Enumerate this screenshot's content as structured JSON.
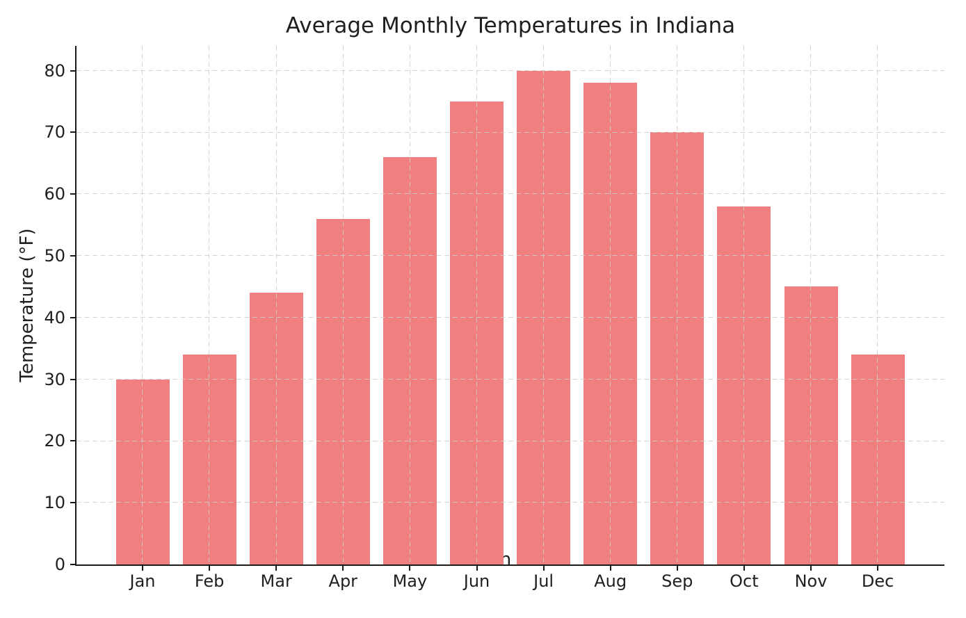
{
  "figure": {
    "background": "#ffffff"
  },
  "chart_data": {
    "type": "bar",
    "title": "Average Monthly Temperatures in Indiana",
    "xlabel": "Month",
    "ylabel": "Temperature (°F)",
    "categories": [
      "Jan",
      "Feb",
      "Mar",
      "Apr",
      "May",
      "Jun",
      "Jul",
      "Aug",
      "Sep",
      "Oct",
      "Nov",
      "Dec"
    ],
    "values": [
      30,
      34,
      44,
      56,
      66,
      75,
      80,
      78,
      70,
      58,
      45,
      34
    ],
    "ylim": [
      0,
      84
    ],
    "yticks": [
      0,
      10,
      20,
      30,
      40,
      50,
      60,
      70,
      80
    ],
    "grid": true,
    "grid_style": "dashed",
    "legend": false,
    "colors": {
      "bar": "#f08080",
      "grid": "#cecece",
      "text": "#1f1f1f",
      "spine": "#1a1a1a"
    }
  }
}
